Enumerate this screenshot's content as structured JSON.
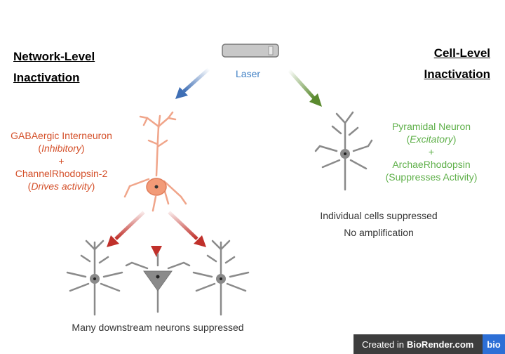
{
  "left_heading": {
    "line1": "Network-Level",
    "line2": "Inactivation"
  },
  "right_heading": {
    "line1": "Cell-Level",
    "line2": "Inactivation"
  },
  "laser_label": "Laser",
  "left_block": {
    "line1": "GABAergic Interneuron",
    "line2": "Inhibitory",
    "plus": "+",
    "line3": "ChannelRhodopsin-2",
    "line4": "Drives activity"
  },
  "right_block": {
    "line1": "Pyramidal Neuron",
    "line2": "Excitatory",
    "plus": "+",
    "line3": "ArchaeRhodopsin",
    "line4": "(Suppresses Activity)"
  },
  "right_caption": {
    "line1": "Individual cells suppressed",
    "line2": "No amplification"
  },
  "bottom_caption": "Many downstream neurons suppressed",
  "badge": {
    "prefix": "Created in ",
    "brand": "BioRender.com",
    "logo": "bio"
  },
  "colors": {
    "laser_blue": "#3f6fb5",
    "green": "#5a8a2e",
    "red": "#c0302a",
    "neuron_orange": "#f0a58a",
    "neuron_gray": "#8a8a8a"
  }
}
